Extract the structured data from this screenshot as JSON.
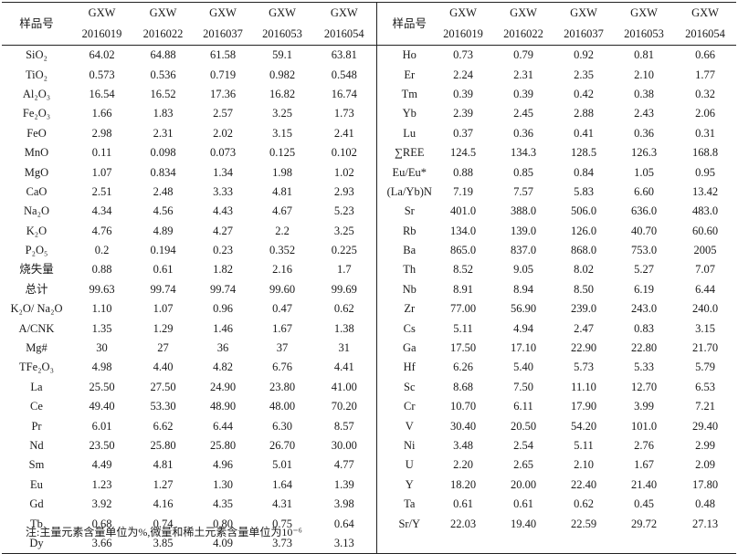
{
  "table": {
    "header": {
      "sample_label_left": "样品号",
      "sample_label_right": "样品号",
      "gxw": [
        "GXW",
        "GXW",
        "GXW",
        "GXW",
        "GXW"
      ],
      "ids": [
        "2016019",
        "2016022",
        "2016037",
        "2016053",
        "2016054"
      ]
    },
    "left_rows": [
      {
        "name": "SiO₂",
        "values": [
          "64.02",
          "64.88",
          "61.58",
          "59.1",
          "63.81"
        ]
      },
      {
        "name": "TiO₂",
        "values": [
          "0.573",
          "0.536",
          "0.719",
          "0.982",
          "0.548"
        ]
      },
      {
        "name": "Al₂O₃",
        "values": [
          "16.54",
          "16.52",
          "17.36",
          "16.82",
          "16.74"
        ]
      },
      {
        "name": "Fe₂O₃",
        "values": [
          "1.66",
          "1.83",
          "2.57",
          "3.25",
          "1.73"
        ]
      },
      {
        "name": "FeO",
        "values": [
          "2.98",
          "2.31",
          "2.02",
          "3.15",
          "2.41"
        ]
      },
      {
        "name": "MnO",
        "values": [
          "0.11",
          "0.098",
          "0.073",
          "0.125",
          "0.102"
        ]
      },
      {
        "name": "MgO",
        "values": [
          "1.07",
          "0.834",
          "1.34",
          "1.98",
          "1.02"
        ]
      },
      {
        "name": "CaO",
        "values": [
          "2.51",
          "2.48",
          "3.33",
          "4.81",
          "2.93"
        ]
      },
      {
        "name": "Na₂O",
        "values": [
          "4.34",
          "4.56",
          "4.43",
          "4.67",
          "5.23"
        ]
      },
      {
        "name": "K₂O",
        "values": [
          "4.76",
          "4.89",
          "4.27",
          "2.2",
          "3.25"
        ]
      },
      {
        "name": "P₂O₅",
        "values": [
          "0.2",
          "0.194",
          "0.23",
          "0.352",
          "0.225"
        ]
      },
      {
        "name": "烧失量",
        "values": [
          "0.88",
          "0.61",
          "1.82",
          "2.16",
          "1.7"
        ]
      },
      {
        "name": "总计",
        "values": [
          "99.63",
          "99.74",
          "99.74",
          "99.60",
          "99.69"
        ]
      },
      {
        "name": "K₂O/ Na₂O",
        "values": [
          "1.10",
          "1.07",
          "0.96",
          "0.47",
          "0.62"
        ]
      },
      {
        "name": "A/CNK",
        "values": [
          "1.35",
          "1.29",
          "1.46",
          "1.67",
          "1.38"
        ]
      },
      {
        "name": "Mg#",
        "values": [
          "30",
          "27",
          "36",
          "37",
          "31"
        ]
      },
      {
        "name": "TFe₂O₃",
        "values": [
          "4.98",
          "4.40",
          "4.82",
          "6.76",
          "4.41"
        ]
      },
      {
        "name": "La",
        "values": [
          "25.50",
          "27.50",
          "24.90",
          "23.80",
          "41.00"
        ]
      },
      {
        "name": "Ce",
        "values": [
          "49.40",
          "53.30",
          "48.90",
          "48.00",
          "70.20"
        ]
      },
      {
        "name": "Pr",
        "values": [
          "6.01",
          "6.62",
          "6.44",
          "6.30",
          "8.57"
        ]
      },
      {
        "name": "Nd",
        "values": [
          "23.50",
          "25.80",
          "25.80",
          "26.70",
          "30.00"
        ]
      },
      {
        "name": "Sm",
        "values": [
          "4.49",
          "4.81",
          "4.96",
          "5.01",
          "4.77"
        ]
      },
      {
        "name": "Eu",
        "values": [
          "1.23",
          "1.27",
          "1.30",
          "1.64",
          "1.39"
        ]
      },
      {
        "name": "Gd",
        "values": [
          "3.92",
          "4.16",
          "4.35",
          "4.31",
          "3.98"
        ]
      },
      {
        "name": "Tb",
        "values": [
          "0.68",
          "0.74",
          "0.80",
          "0.75",
          "0.64"
        ]
      },
      {
        "name": "Dy",
        "values": [
          "3.66",
          "3.85",
          "4.09",
          "3.73",
          "3.13"
        ]
      }
    ],
    "right_rows": [
      {
        "name": "Ho",
        "values": [
          "0.73",
          "0.79",
          "0.92",
          "0.81",
          "0.66"
        ]
      },
      {
        "name": "Er",
        "values": [
          "2.24",
          "2.31",
          "2.35",
          "2.10",
          "1.77"
        ]
      },
      {
        "name": "Tm",
        "values": [
          "0.39",
          "0.39",
          "0.42",
          "0.38",
          "0.32"
        ]
      },
      {
        "name": "Yb",
        "values": [
          "2.39",
          "2.45",
          "2.88",
          "2.43",
          "2.06"
        ]
      },
      {
        "name": "Lu",
        "values": [
          "0.37",
          "0.36",
          "0.41",
          "0.36",
          "0.31"
        ]
      },
      {
        "name": "∑REE",
        "values": [
          "124.5",
          "134.3",
          "128.5",
          "126.3",
          "168.8"
        ]
      },
      {
        "name": "Eu/Eu*",
        "values": [
          "0.88",
          "0.85",
          "0.84",
          "1.05",
          "0.95"
        ]
      },
      {
        "name": "(La/Yb)N",
        "values": [
          "7.19",
          "7.57",
          "5.83",
          "6.60",
          "13.42"
        ]
      },
      {
        "name": "Sr",
        "values": [
          "401.0",
          "388.0",
          "506.0",
          "636.0",
          "483.0"
        ]
      },
      {
        "name": "Rb",
        "values": [
          "134.0",
          "139.0",
          "126.0",
          "40.70",
          "60.60"
        ]
      },
      {
        "name": "Ba",
        "values": [
          "865.0",
          "837.0",
          "868.0",
          "753.0",
          "2005"
        ]
      },
      {
        "name": "Th",
        "values": [
          "8.52",
          "9.05",
          "8.02",
          "5.27",
          "7.07"
        ]
      },
      {
        "name": "Nb",
        "values": [
          "8.91",
          "8.94",
          "8.50",
          "6.19",
          "6.44"
        ]
      },
      {
        "name": "Zr",
        "values": [
          "77.00",
          "56.90",
          "239.0",
          "243.0",
          "240.0"
        ]
      },
      {
        "name": "Cs",
        "values": [
          "5.11",
          "4.94",
          "2.47",
          "0.83",
          "3.15"
        ]
      },
      {
        "name": "Ga",
        "values": [
          "17.50",
          "17.10",
          "22.90",
          "22.80",
          "21.70"
        ]
      },
      {
        "name": "Hf",
        "values": [
          "6.26",
          "5.40",
          "5.73",
          "5.33",
          "5.79"
        ]
      },
      {
        "name": "Sc",
        "values": [
          "8.68",
          "7.50",
          "11.10",
          "12.70",
          "6.53"
        ]
      },
      {
        "name": "Cr",
        "values": [
          "10.70",
          "6.11",
          "17.90",
          "3.99",
          "7.21"
        ]
      },
      {
        "name": "V",
        "values": [
          "30.40",
          "20.50",
          "54.20",
          "101.0",
          "29.40"
        ]
      },
      {
        "name": "Ni",
        "values": [
          "3.48",
          "2.54",
          "5.11",
          "2.76",
          "2.99"
        ]
      },
      {
        "name": "U",
        "values": [
          "2.20",
          "2.65",
          "2.10",
          "1.67",
          "2.09"
        ]
      },
      {
        "name": "Y",
        "values": [
          "18.20",
          "20.00",
          "22.40",
          "21.40",
          "17.80"
        ]
      },
      {
        "name": "Ta",
        "values": [
          "0.61",
          "0.61",
          "0.62",
          "0.45",
          "0.48"
        ]
      },
      {
        "name": "Sr/Y",
        "values": [
          "22.03",
          "19.40",
          "22.59",
          "29.72",
          "27.13"
        ]
      }
    ]
  },
  "note": "注:主量元素含量单位为%,微量和稀土元素含量单位为10⁻⁶"
}
